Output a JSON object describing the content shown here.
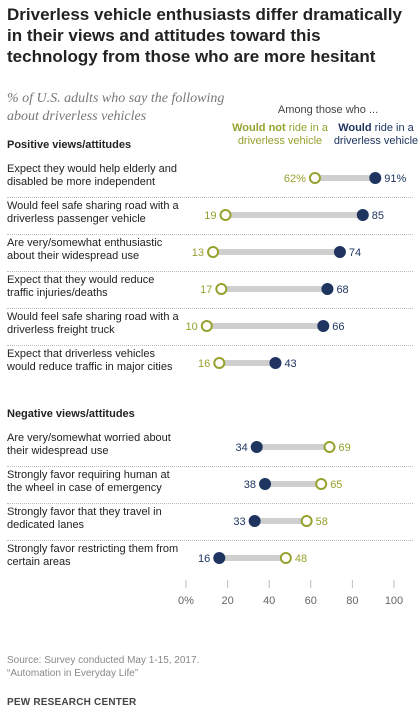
{
  "title": "Driverless vehicle enthusiasts differ dramatically in their views and attitudes toward this technology from those who are more hesitant",
  "subtitle": "% of U.S. adults who say the following about driverless vehicles",
  "legend": {
    "among": "Among those who ...",
    "not_bold": "Would not",
    "not_rest": "ride in a driverless vehicle",
    "would_bold": "Would",
    "would_rest": "ride in a driverless vehicle"
  },
  "colors": {
    "would_not": "#96a22e",
    "would": "#1f3560",
    "bar": "#cfcfcf"
  },
  "chart_data": {
    "type": "dot",
    "xlim": [
      0,
      100
    ],
    "x_ticks": [
      "0%",
      "20",
      "40",
      "60",
      "80",
      "100"
    ],
    "series": [
      {
        "name": "Would not ride in a driverless vehicle"
      },
      {
        "name": "Would ride in a driverless vehicle"
      }
    ],
    "groups": [
      {
        "heading": "Positive views/attitudes",
        "items": [
          {
            "label": "Expect they would help elderly and disabled be more independent",
            "would_not": 62,
            "would": 91,
            "would_not_label": "62%",
            "would_label": "91%"
          },
          {
            "label": "Would feel safe sharing road with a driverless passenger vehicle",
            "would_not": 19,
            "would": 85,
            "would_not_label": "19",
            "would_label": "85"
          },
          {
            "label": "Are very/somewhat enthusiastic about their widespread use",
            "would_not": 13,
            "would": 74,
            "would_not_label": "13",
            "would_label": "74"
          },
          {
            "label": "Expect that they would reduce traffic injuries/deaths",
            "would_not": 17,
            "would": 68,
            "would_not_label": "17",
            "would_label": "68"
          },
          {
            "label": "Would feel safe sharing road with a driverless freight truck",
            "would_not": 10,
            "would": 66,
            "would_not_label": "10",
            "would_label": "66"
          },
          {
            "label": "Expect that driverless vehicles would reduce traffic in major cities",
            "would_not": 16,
            "would": 43,
            "would_not_label": "16",
            "would_label": "43"
          }
        ]
      },
      {
        "heading": "Negative views/attitudes",
        "items": [
          {
            "label": "Are very/somewhat worried about their widespread use",
            "would_not": 69,
            "would": 34,
            "would_not_label": "69",
            "would_label": "34"
          },
          {
            "label": "Strongly favor requiring human at the wheel in case of emergency",
            "would_not": 65,
            "would": 38,
            "would_not_label": "65",
            "would_label": "38"
          },
          {
            "label": "Strongly favor that they travel in dedicated lanes",
            "would_not": 58,
            "would": 33,
            "would_not_label": "58",
            "would_label": "33"
          },
          {
            "label": "Strongly favor restricting them from certain areas",
            "would_not": 48,
            "would": 16,
            "would_not_label": "48",
            "would_label": "16"
          }
        ]
      }
    ]
  },
  "source": "Source: Survey conducted May 1-15, 2017.",
  "report": "“Automation in Everyday Life”",
  "brand": "PEW RESEARCH CENTER"
}
